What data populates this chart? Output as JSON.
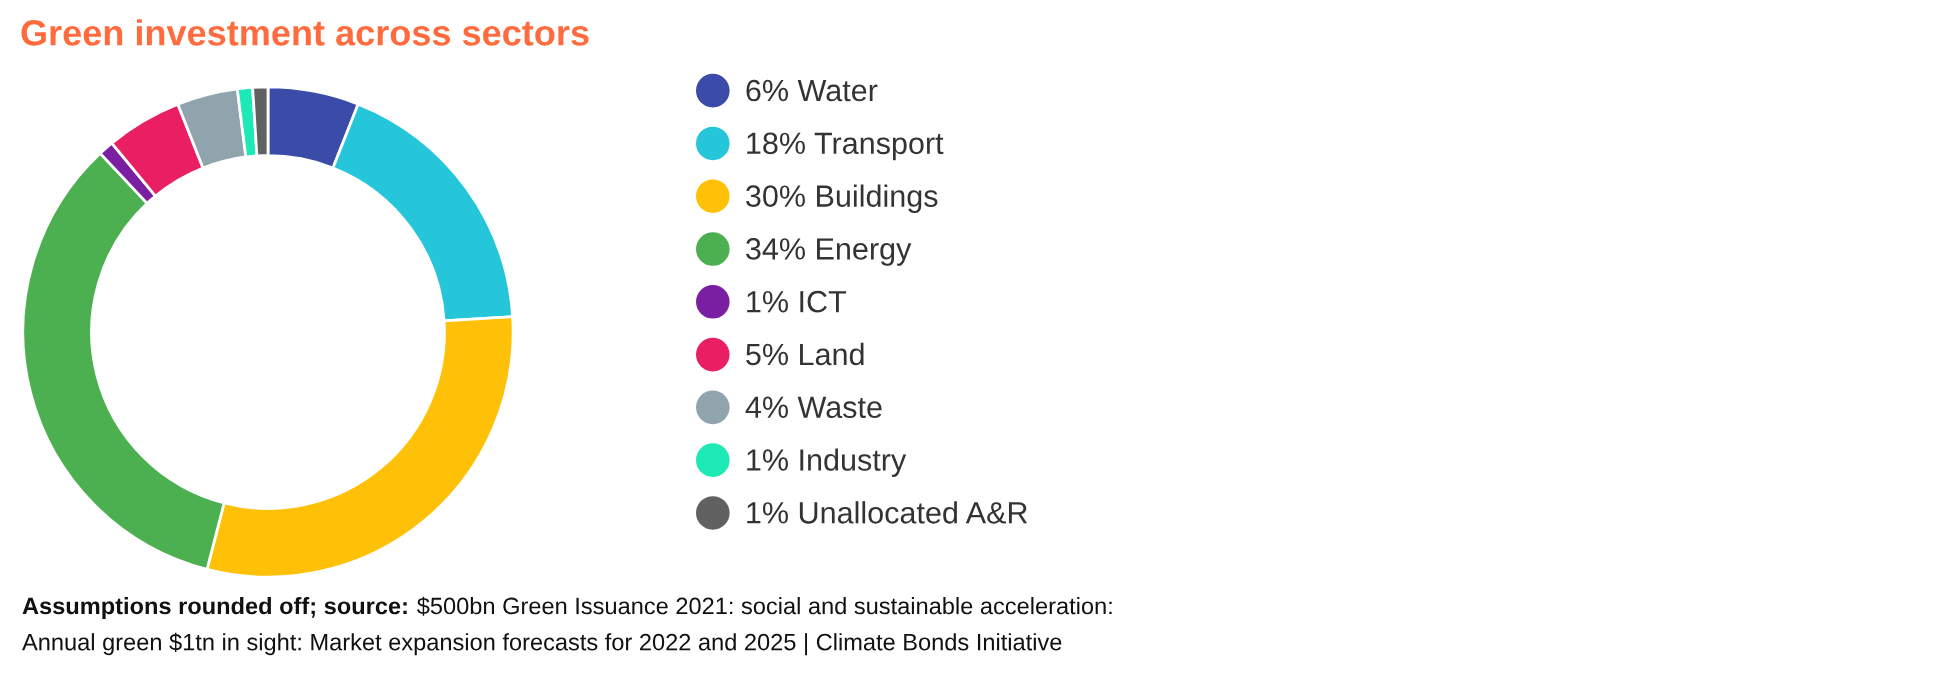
{
  "chart_data": {
    "type": "donut",
    "title": "Green investment across sectors",
    "categories": [
      "Water",
      "Transport",
      "Buildings",
      "Energy",
      "ICT",
      "Land",
      "Waste",
      "Industry",
      "Unallocated A&R"
    ],
    "values": [
      6,
      18,
      30,
      34,
      1,
      5,
      4,
      1,
      1
    ],
    "value_labels": [
      "6%",
      "18%",
      "30%",
      "34%",
      "1%",
      "5%",
      "4%",
      "1%",
      "1%"
    ],
    "colors": [
      "#3b4ba8",
      "#26c6da",
      "#ffc107",
      "#4caf50",
      "#7b1fa2",
      "#e91e63",
      "#90a4ae",
      "#1de9b6",
      "#616161"
    ],
    "legend": "right",
    "annotations": [
      "Assumptions rounded off; source:",
      "$500bn Green Issuance 2021: social and sustainable acceleration:",
      "Annual green $1tn in sight: Market expansion forecasts for 2022 and 2025 | Climate Bonds Initiative"
    ]
  }
}
